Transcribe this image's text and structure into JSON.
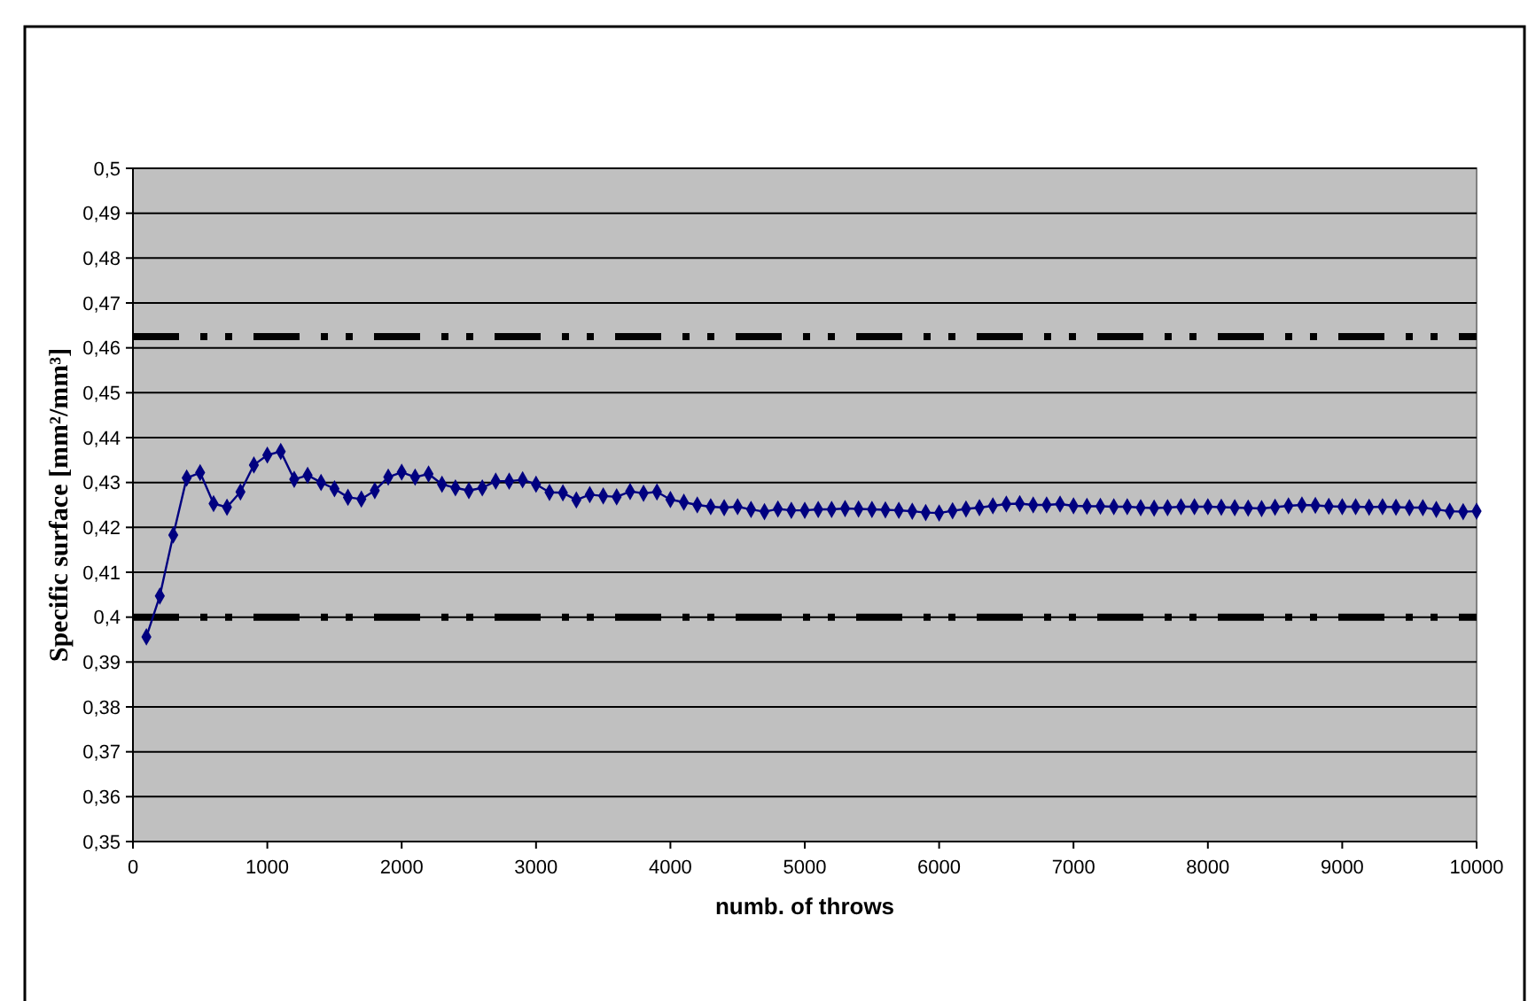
{
  "chart_data": {
    "type": "line",
    "xlabel": "numb. of throws",
    "ylabel": "Specific surface [mm²/mm³]",
    "x": [
      100,
      200,
      300,
      400,
      500,
      600,
      700,
      800,
      900,
      1000,
      1100,
      1200,
      1300,
      1400,
      1500,
      1600,
      1700,
      1800,
      1900,
      2000,
      2100,
      2200,
      2300,
      2400,
      2500,
      2600,
      2700,
      2800,
      2900,
      3000,
      3100,
      3200,
      3300,
      3400,
      3500,
      3600,
      3700,
      3800,
      3900,
      4000,
      4100,
      4200,
      4300,
      4400,
      4500,
      4600,
      4700,
      4800,
      4900,
      5000,
      5100,
      5200,
      5300,
      5400,
      5500,
      5600,
      5700,
      5800,
      5900,
      6000,
      6100,
      6200,
      6300,
      6400,
      6500,
      6600,
      6700,
      6800,
      6900,
      7000,
      7100,
      7200,
      7300,
      7400,
      7500,
      7600,
      7700,
      7800,
      7900,
      8000,
      8100,
      8200,
      8300,
      8400,
      8500,
      8600,
      8700,
      8800,
      8900,
      9000,
      9100,
      9200,
      9300,
      9400,
      9500,
      9600,
      9700,
      9800,
      9900,
      10000
    ],
    "series": [
      {
        "color": "#000080",
        "values": [
          0.3956,
          0.4047,
          0.4183,
          0.431,
          0.4322,
          0.4253,
          0.4245,
          0.4279,
          0.4339,
          0.4361,
          0.4369,
          0.4307,
          0.4316,
          0.43,
          0.4286,
          0.4267,
          0.4263,
          0.4282,
          0.4312,
          0.4323,
          0.4312,
          0.4319,
          0.4296,
          0.4288,
          0.4282,
          0.4288,
          0.4303,
          0.4303,
          0.4306,
          0.4296,
          0.4278,
          0.4277,
          0.4261,
          0.4273,
          0.427,
          0.4268,
          0.428,
          0.4276,
          0.4279,
          0.4262,
          0.4256,
          0.425,
          0.4246,
          0.4244,
          0.4246,
          0.424,
          0.4235,
          0.4241,
          0.4238,
          0.4238,
          0.424,
          0.424,
          0.4242,
          0.4241,
          0.424,
          0.4239,
          0.4238,
          0.4236,
          0.4233,
          0.4232,
          0.4237,
          0.4241,
          0.4244,
          0.4248,
          0.4252,
          0.4253,
          0.425,
          0.425,
          0.4252,
          0.4248,
          0.4247,
          0.4247,
          0.4246,
          0.4246,
          0.4244,
          0.4243,
          0.4244,
          0.4246,
          0.4246,
          0.4246,
          0.4245,
          0.4244,
          0.4243,
          0.4242,
          0.4245,
          0.4248,
          0.425,
          0.4249,
          0.4247,
          0.4246,
          0.4246,
          0.4245,
          0.4246,
          0.4245,
          0.4244,
          0.4244,
          0.424,
          0.4236,
          0.4235,
          0.4236
        ]
      }
    ],
    "xlim": [
      0,
      10000
    ],
    "xticks": [
      0,
      1000,
      2000,
      3000,
      4000,
      5000,
      6000,
      7000,
      8000,
      9000,
      10000
    ],
    "ylim": [
      0.35,
      0.5
    ],
    "yticks": [
      {
        "value": 0.35,
        "label": "0,35"
      },
      {
        "value": 0.36,
        "label": "0,36"
      },
      {
        "value": 0.37,
        "label": "0,37"
      },
      {
        "value": 0.38,
        "label": "0,38"
      },
      {
        "value": 0.39,
        "label": "0,39"
      },
      {
        "value": 0.4,
        "label": "0,4"
      },
      {
        "value": 0.41,
        "label": "0,41"
      },
      {
        "value": 0.42,
        "label": "0,42"
      },
      {
        "value": 0.43,
        "label": "0,43"
      },
      {
        "value": 0.44,
        "label": "0,44"
      },
      {
        "value": 0.45,
        "label": "0,45"
      },
      {
        "value": 0.46,
        "label": "0,46"
      },
      {
        "value": 0.47,
        "label": "0,47"
      },
      {
        "value": 0.48,
        "label": "0,48"
      },
      {
        "value": 0.49,
        "label": "0,49"
      },
      {
        "value": 0.5,
        "label": "0,5"
      }
    ],
    "ref_lines": [
      {
        "axis": "y",
        "value": 0.4625,
        "color": "#000000"
      },
      {
        "axis": "y",
        "value": 0.4,
        "color": "#000000"
      }
    ],
    "grid": "y",
    "marker": "diamond",
    "line_style": "solid"
  }
}
